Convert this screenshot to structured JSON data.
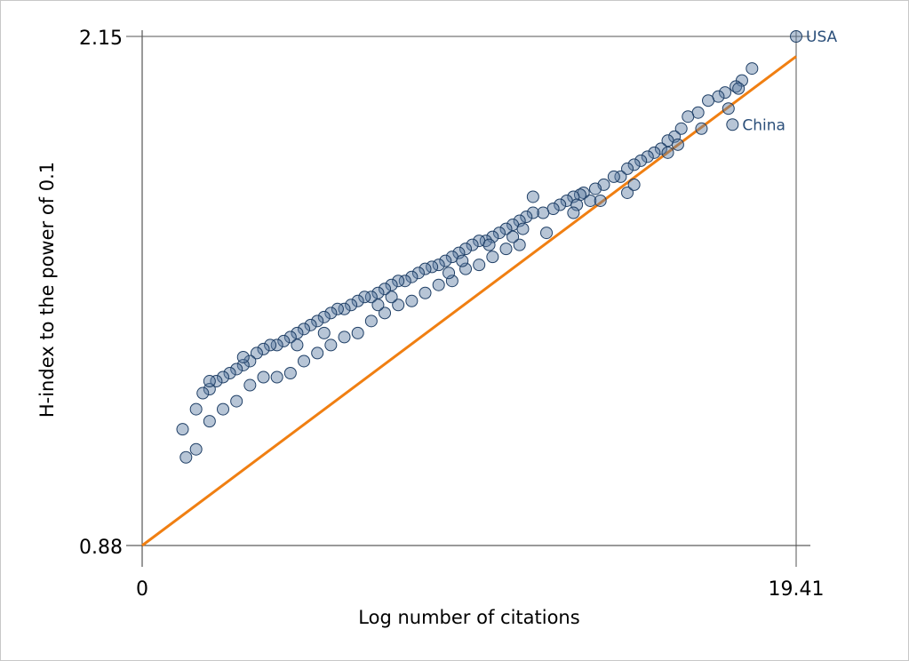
{
  "chart_data": {
    "type": "scatter",
    "title": "",
    "xlabel": "Log number of citations",
    "ylabel": "H-index to the power of 0.1",
    "xlim": [
      0,
      19.41
    ],
    "ylim": [
      0.88,
      2.15
    ],
    "x_ticks": [
      "0",
      "19.41"
    ],
    "y_ticks": [
      "0.88",
      "2.15"
    ],
    "grid": false,
    "colors": {
      "points_fill": "#5f7ea3",
      "points_stroke": "#1f3f66",
      "fit_line": "#f07f12",
      "annotation": "#2b4f7a"
    },
    "fit_line": {
      "x": [
        0,
        19.41
      ],
      "y": [
        0.88,
        2.1
      ]
    },
    "annotations": [
      {
        "text": "USA",
        "x": 19.41,
        "y": 2.15
      },
      {
        "text": "China",
        "x": 17.52,
        "y": 1.93
      }
    ],
    "points": [
      [
        19.41,
        2.15
      ],
      [
        18.1,
        2.07
      ],
      [
        17.8,
        2.04
      ],
      [
        17.62,
        2.025
      ],
      [
        17.3,
        2.01
      ],
      [
        17.1,
        2.0
      ],
      [
        17.52,
        1.93
      ],
      [
        17.7,
        2.02
      ],
      [
        16.8,
        1.99
      ],
      [
        16.5,
        1.96
      ],
      [
        16.2,
        1.95
      ],
      [
        16.0,
        1.92
      ],
      [
        15.8,
        1.9
      ],
      [
        15.6,
        1.89
      ],
      [
        15.9,
        1.88
      ],
      [
        15.4,
        1.87
      ],
      [
        15.2,
        1.86
      ],
      [
        15.0,
        1.85
      ],
      [
        14.8,
        1.84
      ],
      [
        14.6,
        1.83
      ],
      [
        14.4,
        1.82
      ],
      [
        14.2,
        1.8
      ],
      [
        14.0,
        1.8
      ],
      [
        13.7,
        1.78
      ],
      [
        13.45,
        1.77
      ],
      [
        13.1,
        1.76
      ],
      [
        14.4,
        1.76
      ],
      [
        13.0,
        1.755
      ],
      [
        12.8,
        1.75
      ],
      [
        13.3,
        1.74
      ],
      [
        12.6,
        1.74
      ],
      [
        12.4,
        1.73
      ],
      [
        12.2,
        1.72
      ],
      [
        12.9,
        1.73
      ],
      [
        11.6,
        1.75
      ],
      [
        11.9,
        1.71
      ],
      [
        11.6,
        1.71
      ],
      [
        11.4,
        1.7
      ],
      [
        11.2,
        1.69
      ],
      [
        11.0,
        1.68
      ],
      [
        10.8,
        1.67
      ],
      [
        10.6,
        1.66
      ],
      [
        11.3,
        1.67
      ],
      [
        10.4,
        1.65
      ],
      [
        10.2,
        1.64
      ],
      [
        10.0,
        1.64
      ],
      [
        9.8,
        1.63
      ],
      [
        9.6,
        1.62
      ],
      [
        9.4,
        1.61
      ],
      [
        9.2,
        1.6
      ],
      [
        9.0,
        1.59
      ],
      [
        8.8,
        1.58
      ],
      [
        8.6,
        1.575
      ],
      [
        8.4,
        1.57
      ],
      [
        8.2,
        1.56
      ],
      [
        8.0,
        1.55
      ],
      [
        7.8,
        1.54
      ],
      [
        7.6,
        1.54
      ],
      [
        7.4,
        1.53
      ],
      [
        7.2,
        1.52
      ],
      [
        7.0,
        1.51
      ],
      [
        6.8,
        1.5
      ],
      [
        6.6,
        1.5
      ],
      [
        6.4,
        1.49
      ],
      [
        6.2,
        1.48
      ],
      [
        6.0,
        1.47
      ],
      [
        5.8,
        1.47
      ],
      [
        5.6,
        1.46
      ],
      [
        5.4,
        1.45
      ],
      [
        5.2,
        1.44
      ],
      [
        5.0,
        1.43
      ],
      [
        4.8,
        1.42
      ],
      [
        4.6,
        1.41
      ],
      [
        4.4,
        1.4
      ],
      [
        4.2,
        1.39
      ],
      [
        4.0,
        1.38
      ],
      [
        3.8,
        1.38
      ],
      [
        3.6,
        1.37
      ],
      [
        3.4,
        1.36
      ],
      [
        3.2,
        1.34
      ],
      [
        3.0,
        1.33
      ],
      [
        2.8,
        1.32
      ],
      [
        2.6,
        1.31
      ],
      [
        2.4,
        1.3
      ],
      [
        2.2,
        1.29
      ],
      [
        2.0,
        1.27
      ],
      [
        1.8,
        1.26
      ],
      [
        1.6,
        1.22
      ],
      [
        1.2,
        1.17
      ],
      [
        1.3,
        1.1
      ],
      [
        1.6,
        1.12
      ],
      [
        2.0,
        1.19
      ],
      [
        2.4,
        1.22
      ],
      [
        2.8,
        1.24
      ],
      [
        3.2,
        1.28
      ],
      [
        3.6,
        1.3
      ],
      [
        4.0,
        1.3
      ],
      [
        4.4,
        1.31
      ],
      [
        4.8,
        1.34
      ],
      [
        5.2,
        1.36
      ],
      [
        5.6,
        1.38
      ],
      [
        6.0,
        1.4
      ],
      [
        6.4,
        1.41
      ],
      [
        6.8,
        1.44
      ],
      [
        7.2,
        1.46
      ],
      [
        7.6,
        1.48
      ],
      [
        8.0,
        1.49
      ],
      [
        8.4,
        1.51
      ],
      [
        8.8,
        1.53
      ],
      [
        9.2,
        1.54
      ],
      [
        9.6,
        1.57
      ],
      [
        10.0,
        1.58
      ],
      [
        10.4,
        1.6
      ],
      [
        10.8,
        1.62
      ],
      [
        11.2,
        1.63
      ],
      [
        12.0,
        1.66
      ],
      [
        12.8,
        1.71
      ],
      [
        13.6,
        1.74
      ],
      [
        14.6,
        1.78
      ],
      [
        15.6,
        1.86
      ],
      [
        16.6,
        1.92
      ],
      [
        17.4,
        1.97
      ],
      [
        9.1,
        1.56
      ],
      [
        9.5,
        1.59
      ],
      [
        10.3,
        1.63
      ],
      [
        11.0,
        1.65
      ],
      [
        7.0,
        1.48
      ],
      [
        7.4,
        1.5
      ],
      [
        5.4,
        1.41
      ],
      [
        4.6,
        1.38
      ],
      [
        3.0,
        1.35
      ],
      [
        2.0,
        1.29
      ]
    ]
  }
}
